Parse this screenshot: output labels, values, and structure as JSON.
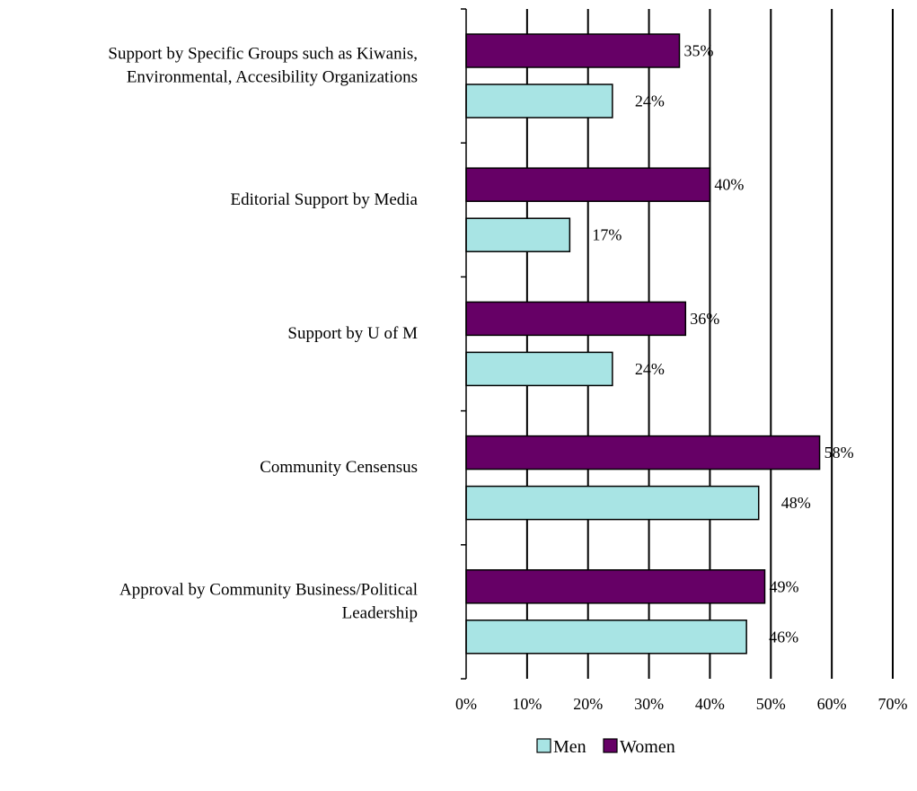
{
  "chart_data": {
    "type": "bar",
    "orientation": "horizontal",
    "categories": [
      [
        "Support by Specific Groups such as Kiwanis,",
        "Environmental, Accesibility Organizations"
      ],
      [
        "Editorial Support by Media"
      ],
      [
        "Support by U of M"
      ],
      [
        "Community Censensus"
      ],
      [
        "Approval by Community Business/Political",
        "Leadership"
      ]
    ],
    "series": [
      {
        "name": "Women",
        "color": "#660066",
        "values": [
          35,
          40,
          36,
          58,
          49
        ],
        "labels": [
          "35%",
          "40%",
          "36%",
          "58%",
          "49%"
        ]
      },
      {
        "name": "Men",
        "color": "#a8e4e4",
        "values": [
          24,
          17,
          24,
          48,
          46
        ],
        "labels": [
          "24%",
          "17%",
          "24%",
          "48%",
          "46%"
        ]
      }
    ],
    "xlim": [
      0,
      70
    ],
    "xticks": [
      "0%",
      "10%",
      "20%",
      "30%",
      "40%",
      "50%",
      "60%",
      "70%"
    ],
    "xtick_values": [
      0,
      10,
      20,
      30,
      40,
      50,
      60,
      70
    ],
    "grid": "vertical",
    "legend_position": "bottom-right",
    "legend_order": [
      "Men",
      "Women"
    ]
  }
}
